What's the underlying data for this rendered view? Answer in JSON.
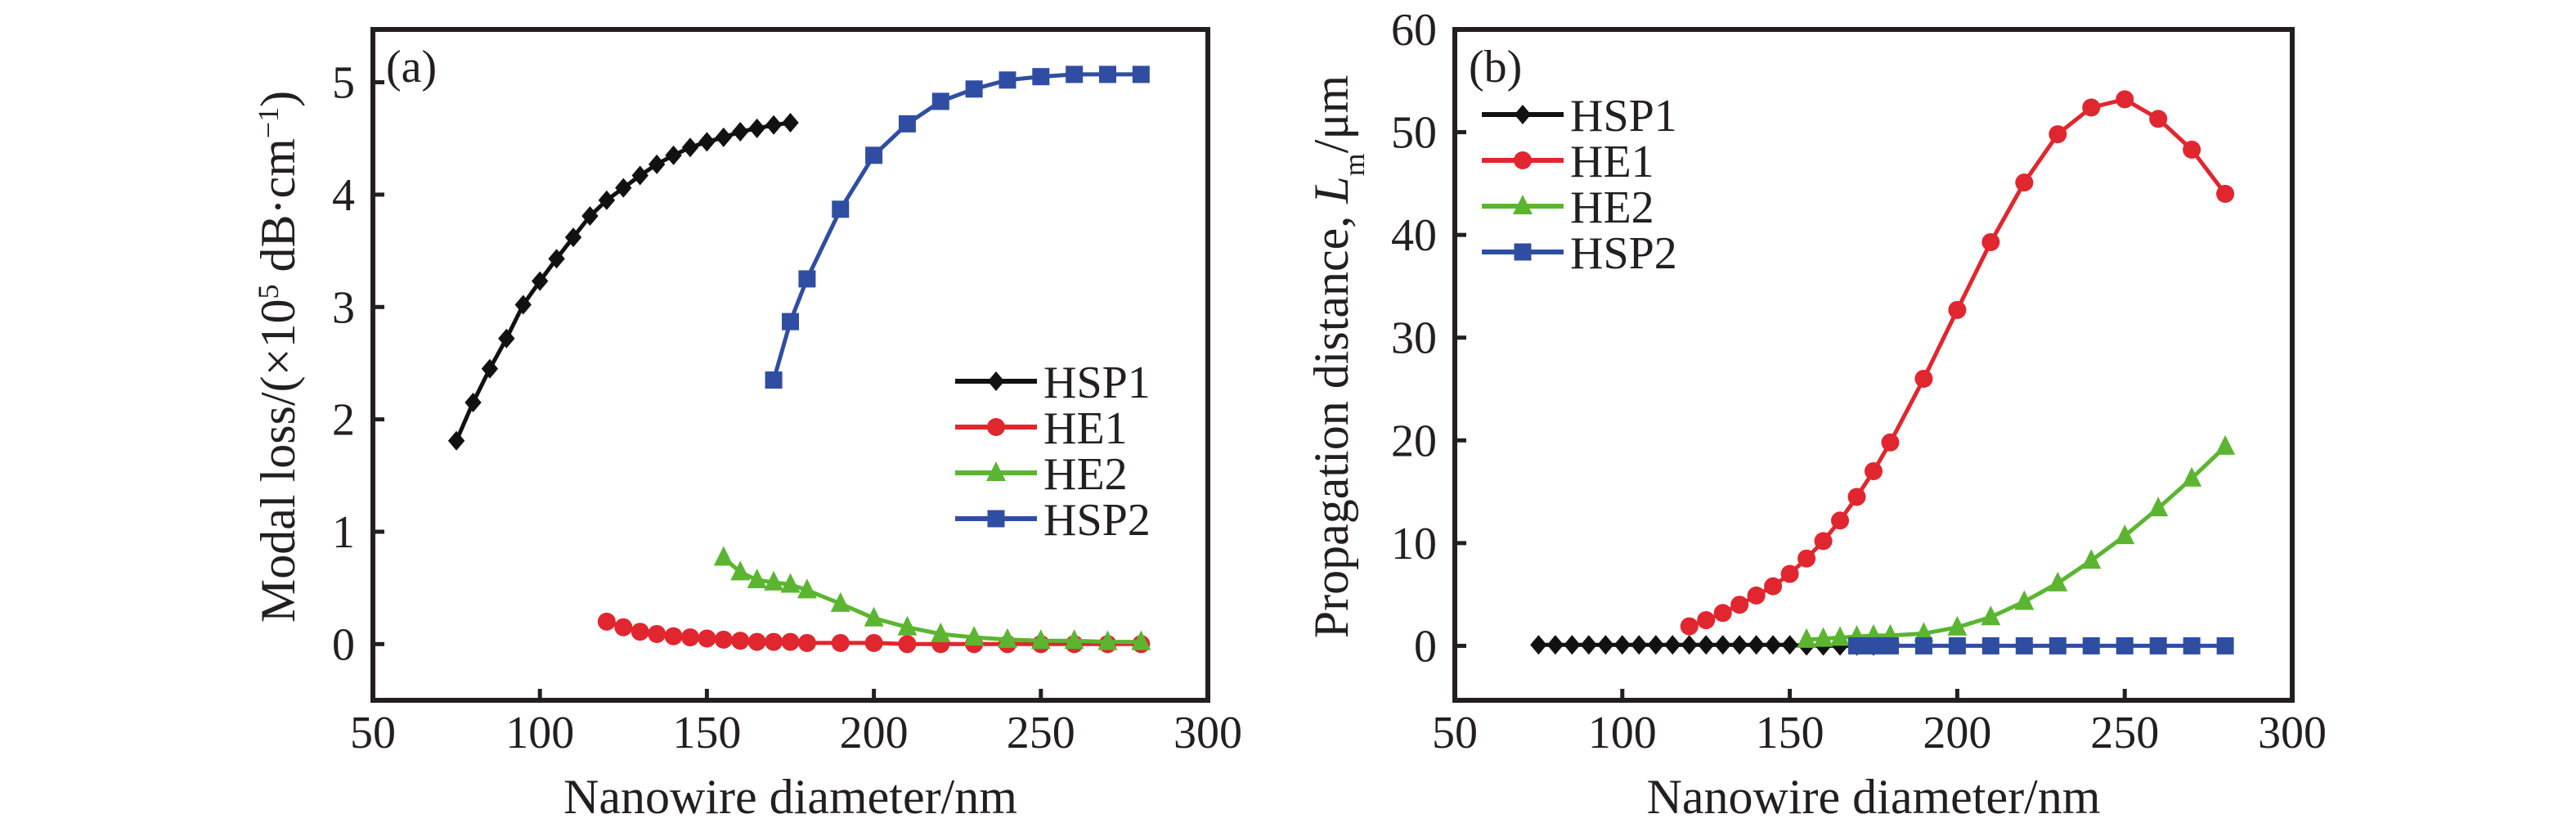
{
  "chart_data": [
    {
      "type": "line",
      "panel_label": "(a)",
      "xlabel": "Nanowire diameter/nm",
      "ylabel": {
        "prefix": "Modal loss/(×10",
        "exponent": "5",
        "middle": " dB·cm",
        "unit_exponent": "−1",
        "suffix": ")"
      },
      "xlim": [
        50,
        300
      ],
      "ylim": [
        -0.5,
        5.47
      ],
      "xticks": [
        50,
        100,
        150,
        200,
        250,
        300
      ],
      "yticks": [
        0,
        1,
        2,
        3,
        4,
        5
      ],
      "xtick_labels": [
        "50",
        "100",
        "150",
        "200",
        "250",
        "300"
      ],
      "ytick_labels": [
        "0",
        "1",
        "2",
        "3",
        "4",
        "5"
      ],
      "grid": false,
      "legend_position": "center-right",
      "series": [
        {
          "name": "HSP1",
          "color": "#111111",
          "marker": "diamond",
          "x": [
            75,
            80,
            85,
            90,
            95,
            100,
            105,
            110,
            115,
            120,
            125,
            130,
            135,
            140,
            145,
            150,
            155,
            160,
            165,
            170,
            175
          ],
          "y": [
            1.81,
            2.15,
            2.45,
            2.72,
            3.02,
            3.23,
            3.43,
            3.62,
            3.81,
            3.95,
            4.06,
            4.17,
            4.27,
            4.35,
            4.42,
            4.47,
            4.51,
            4.56,
            4.59,
            4.62,
            4.64
          ]
        },
        {
          "name": "HE1",
          "color": "#e0262e",
          "marker": "circle",
          "x": [
            120,
            125,
            130,
            135,
            140,
            145,
            150,
            155,
            160,
            165,
            170,
            175,
            180,
            190,
            200,
            210,
            220,
            230,
            240,
            250,
            260,
            270,
            280
          ],
          "y": [
            0.2,
            0.15,
            0.11,
            0.09,
            0.07,
            0.06,
            0.05,
            0.04,
            0.03,
            0.02,
            0.02,
            0.02,
            0.01,
            0.01,
            0.01,
            0.0,
            0.0,
            0.0,
            0.0,
            0.0,
            0.0,
            0.0,
            0.0
          ]
        },
        {
          "name": "HE2",
          "color": "#5bb531",
          "marker": "triangle",
          "x": [
            155,
            160,
            165,
            170,
            175,
            180,
            190,
            200,
            210,
            220,
            230,
            240,
            250,
            260,
            270,
            280
          ],
          "y": [
            0.77,
            0.64,
            0.57,
            0.55,
            0.53,
            0.48,
            0.36,
            0.23,
            0.15,
            0.09,
            0.06,
            0.04,
            0.03,
            0.03,
            0.02,
            0.02
          ]
        },
        {
          "name": "HSP2",
          "color": "#2f4ea2",
          "marker": "square",
          "x": [
            170,
            175,
            180,
            190,
            200,
            210,
            220,
            230,
            240,
            250,
            260,
            270,
            280
          ],
          "y": [
            2.35,
            2.87,
            3.25,
            3.87,
            4.35,
            4.63,
            4.83,
            4.94,
            5.02,
            5.05,
            5.07,
            5.07,
            5.07
          ]
        }
      ]
    },
    {
      "type": "line",
      "panel_label": "(b)",
      "xlabel": "Nanowire diameter/nm",
      "ylabel": {
        "prefix": "Propagation distance, ",
        "symbol": "L",
        "subscript": "m",
        "suffix": "/μm"
      },
      "xlim": [
        50,
        300
      ],
      "ylim": [
        -5.3,
        60
      ],
      "xticks": [
        50,
        100,
        150,
        200,
        250,
        300
      ],
      "yticks": [
        0,
        10,
        20,
        30,
        40,
        50,
        60
      ],
      "xtick_labels": [
        "50",
        "100",
        "150",
        "200",
        "250",
        "300"
      ],
      "ytick_labels": [
        "0",
        "10",
        "20",
        "30",
        "40",
        "50",
        "60"
      ],
      "grid": false,
      "legend_position": "top-left",
      "series": [
        {
          "name": "HSP1",
          "color": "#111111",
          "marker": "diamond",
          "x": [
            75,
            80,
            85,
            90,
            95,
            100,
            105,
            110,
            115,
            120,
            125,
            130,
            135,
            140,
            145,
            150,
            155,
            160,
            165,
            170,
            175
          ],
          "y": [
            0.1,
            0.1,
            0.1,
            0.1,
            0.1,
            0.1,
            0.1,
            0.1,
            0.1,
            0.1,
            0.1,
            0.1,
            0.1,
            0.1,
            0.1,
            0.1,
            0.0,
            0.0,
            0.0,
            0.0,
            0.0
          ]
        },
        {
          "name": "HE1",
          "color": "#e0262e",
          "marker": "circle",
          "x": [
            120,
            125,
            130,
            135,
            140,
            145,
            150,
            155,
            160,
            165,
            170,
            175,
            180,
            190,
            200,
            210,
            220,
            230,
            240,
            250,
            260,
            270,
            280
          ],
          "y": [
            1.9,
            2.5,
            3.2,
            4.0,
            4.9,
            5.8,
            7.0,
            8.5,
            10.2,
            12.2,
            14.5,
            17.0,
            19.8,
            26.0,
            32.7,
            39.3,
            45.1,
            49.8,
            52.4,
            53.2,
            51.3,
            48.3,
            44.0
          ]
        },
        {
          "name": "HE2",
          "color": "#5bb531",
          "marker": "triangle",
          "x": [
            155,
            160,
            165,
            170,
            175,
            180,
            190,
            200,
            210,
            220,
            230,
            240,
            250,
            260,
            270,
            280
          ],
          "y": [
            0.6,
            0.7,
            0.8,
            0.9,
            1.0,
            1.0,
            1.2,
            1.8,
            2.8,
            4.3,
            6.1,
            8.3,
            10.7,
            13.4,
            16.3,
            19.4
          ]
        },
        {
          "name": "HSP2",
          "color": "#2f4ea2",
          "marker": "square",
          "x": [
            170,
            175,
            180,
            190,
            200,
            210,
            220,
            230,
            240,
            250,
            260,
            270,
            280
          ],
          "y": [
            0.0,
            0.0,
            0.0,
            0.0,
            0.0,
            0.0,
            0.0,
            0.0,
            0.0,
            0.0,
            0.0,
            0.0,
            0.0
          ]
        }
      ]
    }
  ]
}
